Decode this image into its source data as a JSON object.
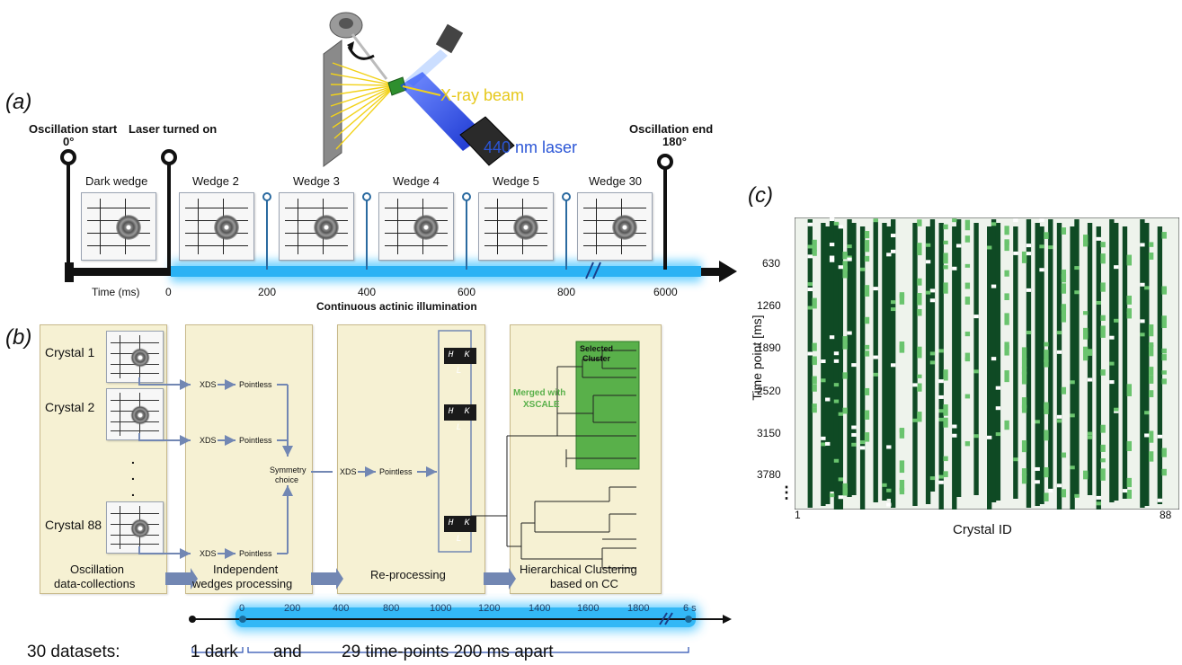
{
  "panel_a": {
    "letter": "(a)",
    "oscillation_start": "Oscillation start",
    "start_angle": "0°",
    "laser_on": "Laser turned on",
    "oscillation_end": "Oscillation end",
    "end_angle": "180°",
    "xray_beam": "X-ray beam",
    "laser_label": "440 nm laser",
    "wedges": [
      "Dark wedge",
      "Wedge 2",
      "Wedge 3",
      "Wedge 4",
      "Wedge 5",
      "Wedge 30"
    ],
    "time_label": "Time (ms)",
    "ticks": [
      "0",
      "200",
      "400",
      "600",
      "800",
      "6000"
    ],
    "illumination": "Continuous actinic illumination",
    "colors": {
      "laser": "#1a3fd6",
      "xray": "#f2d21a",
      "glow": "#3fc2ff"
    }
  },
  "panel_b": {
    "letter": "(b)",
    "crystals": [
      "Crystal 1",
      "Crystal 2",
      "Crystal 88"
    ],
    "ellipsis": ".",
    "flow_xds": "XDS",
    "flow_pointless": "Pointless",
    "symmetry_line1": "Symmetry",
    "symmetry_line2": "choice",
    "hkl": "H K L",
    "merged_line1": "Merged with",
    "merged_line2": "XSCALE",
    "selected_line1": "Selected",
    "selected_line2": "Cluster",
    "stage1_line1": "Oscillation",
    "stage1_line2": "data-collections",
    "stage2_line1": "Independent",
    "stage2_line2": "wedges processing",
    "stage3": "Re-processing",
    "stage4_line1": "Hierarchical Clustering",
    "stage4_line2": "based on CC",
    "timeline_ticks": [
      "0",
      "200",
      "400",
      "800",
      "1000",
      "1200",
      "1400",
      "1600",
      "1800",
      "6 s"
    ],
    "caption_prefix": "30 datasets:",
    "caption_dark": "1 dark",
    "caption_and": "and",
    "caption_points": "29 time-points 200 ms apart",
    "colors": {
      "merged": "#59b04a",
      "arrow": "#7287b3"
    }
  },
  "panel_c": {
    "letter": "(c)",
    "chart_data": {
      "type": "heatmap",
      "xlabel": "Crystal ID",
      "ylabel": "Time point [ms]",
      "x_ticks": [
        "1",
        "88"
      ],
      "y_ticks": [
        "630",
        "1260",
        "1890",
        "2520",
        "3150",
        "3780"
      ],
      "y_ellipsis": "⋮",
      "colors": {
        "background": "#eef3ec",
        "dark": "#0f4a24",
        "light": "#6ac46e"
      }
    }
  }
}
